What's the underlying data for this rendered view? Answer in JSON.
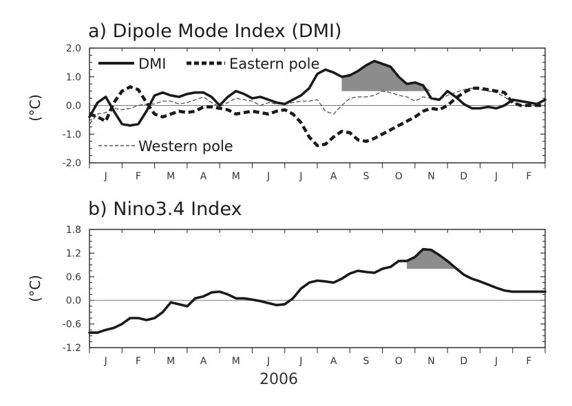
{
  "chart_data": [
    {
      "type": "line",
      "title": "a) Dipole Mode Index (DMI)",
      "xlabel": "",
      "ylabel": "(°C)",
      "ylim": [
        -2.0,
        2.0
      ],
      "yticks": [
        "2.0",
        "1.0",
        "0.0",
        "-1.0",
        "-2.0"
      ],
      "x_start": 0,
      "x_end": 14,
      "categories": [
        "J",
        "F",
        "M",
        "A",
        "M",
        "J",
        "J",
        "A",
        "S",
        "O",
        "N",
        "D",
        "J",
        "F"
      ],
      "x": [
        0,
        0.25,
        0.5,
        0.75,
        1,
        1.25,
        1.5,
        1.75,
        2,
        2.25,
        2.5,
        2.75,
        3,
        3.25,
        3.5,
        3.75,
        4,
        4.25,
        4.5,
        4.75,
        5,
        5.25,
        5.5,
        5.75,
        6,
        6.25,
        6.5,
        6.75,
        7,
        7.25,
        7.5,
        7.75,
        8,
        8.25,
        8.5,
        8.75,
        9,
        9.25,
        9.5,
        9.75,
        10,
        10.25,
        10.5,
        10.75,
        11,
        11.25,
        11.5,
        11.75,
        12,
        12.25,
        12.5,
        12.75,
        13,
        13.25,
        13.5,
        13.75,
        14
      ],
      "series": [
        {
          "name": "DMI",
          "style": "solid-thick",
          "values": [
            -0.4,
            0.1,
            0.3,
            -0.2,
            -0.65,
            -0.7,
            -0.65,
            -0.2,
            0.35,
            0.45,
            0.35,
            0.3,
            0.4,
            0.45,
            0.45,
            0.3,
            0.0,
            0.3,
            0.5,
            0.4,
            0.25,
            0.3,
            0.2,
            0.1,
            0.05,
            0.2,
            0.35,
            0.6,
            1.1,
            1.25,
            1.15,
            1.0,
            1.05,
            1.2,
            1.4,
            1.55,
            1.45,
            1.35,
            1.0,
            0.75,
            0.8,
            0.7,
            0.25,
            0.2,
            0.5,
            0.3,
            0.05,
            -0.1,
            -0.1,
            -0.05,
            -0.1,
            0.0,
            0.2,
            0.15,
            0.1,
            0.05,
            0.2
          ]
        },
        {
          "name": "Eastern pole",
          "style": "dashed-thick",
          "values": [
            -0.3,
            -0.4,
            -0.55,
            0.1,
            0.5,
            0.65,
            0.55,
            0.1,
            -0.3,
            -0.4,
            -0.3,
            -0.2,
            -0.25,
            -0.2,
            -0.05,
            -0.05,
            -0.1,
            -0.15,
            -0.3,
            -0.25,
            -0.2,
            -0.25,
            -0.3,
            -0.2,
            -0.15,
            -0.3,
            -0.6,
            -1.1,
            -1.4,
            -1.35,
            -1.1,
            -0.9,
            -0.95,
            -1.2,
            -1.25,
            -1.15,
            -1.0,
            -0.85,
            -0.7,
            -0.55,
            -0.4,
            -0.2,
            -0.1,
            -0.15,
            0.0,
            0.25,
            0.45,
            0.6,
            0.6,
            0.55,
            0.5,
            0.45,
            0.1,
            0.0,
            0.0,
            0.0,
            0.0
          ]
        },
        {
          "name": "Western pole",
          "style": "dashed-thin",
          "values": [
            -0.65,
            -0.3,
            -0.25,
            -0.1,
            -0.15,
            -0.1,
            0.0,
            0.05,
            0.05,
            0.15,
            0.15,
            0.05,
            0.1,
            0.2,
            0.3,
            0.1,
            -0.05,
            0.1,
            0.25,
            0.2,
            0.15,
            0.0,
            0.1,
            0.05,
            0.05,
            0.1,
            0.15,
            0.15,
            0.2,
            -0.2,
            -0.3,
            0.0,
            0.25,
            0.3,
            0.3,
            0.35,
            0.5,
            0.45,
            0.35,
            0.3,
            0.15,
            0.3,
            0.25,
            0.2,
            0.35,
            0.45,
            0.55,
            0.6,
            0.55,
            0.5,
            0.45,
            0.3,
            0.1,
            0.0,
            0.0,
            0.0,
            0.0
          ]
        }
      ],
      "shaded_threshold": 0.5,
      "shaded_x_range": [
        7.75,
        10.75
      ],
      "shading_color": "#8c8c8c",
      "legend": [
        "DMI",
        "Eastern pole",
        "Western pole"
      ],
      "grid": false
    },
    {
      "type": "line",
      "title": "b) Nino3.4 Index",
      "xlabel": "2006",
      "ylabel": "(°C)",
      "ylim": [
        -1.2,
        1.8
      ],
      "yticks": [
        "1.8",
        "1.2",
        "0.6",
        "0.0",
        "-0.6",
        "-1.2"
      ],
      "x_start": 0,
      "x_end": 14,
      "categories": [
        "J",
        "F",
        "M",
        "A",
        "M",
        "J",
        "J",
        "A",
        "S",
        "O",
        "N",
        "D",
        "J",
        "F"
      ],
      "x": [
        0,
        0.25,
        0.5,
        0.75,
        1,
        1.25,
        1.5,
        1.75,
        2,
        2.25,
        2.5,
        2.75,
        3,
        3.25,
        3.5,
        3.75,
        4,
        4.25,
        4.5,
        4.75,
        5,
        5.25,
        5.5,
        5.75,
        6,
        6.25,
        6.5,
        6.75,
        7,
        7.25,
        7.5,
        7.75,
        8,
        8.25,
        8.5,
        8.75,
        9,
        9.25,
        9.5,
        9.75,
        10,
        10.25,
        10.5,
        10.75,
        11,
        11.25,
        11.5,
        11.75,
        12,
        12.25,
        12.5,
        12.75,
        13,
        13.25,
        13.5,
        13.75,
        14
      ],
      "series": [
        {
          "name": "Nino3.4",
          "style": "solid-thick",
          "values": [
            -0.82,
            -0.82,
            -0.75,
            -0.7,
            -0.6,
            -0.45,
            -0.45,
            -0.5,
            -0.45,
            -0.3,
            -0.05,
            -0.1,
            -0.15,
            0.05,
            0.1,
            0.2,
            0.22,
            0.15,
            0.05,
            0.05,
            0.02,
            -0.02,
            -0.07,
            -0.12,
            -0.1,
            0.05,
            0.3,
            0.45,
            0.5,
            0.48,
            0.45,
            0.55,
            0.68,
            0.75,
            0.72,
            0.7,
            0.8,
            0.85,
            1.0,
            1.0,
            1.1,
            1.3,
            1.28,
            1.15,
            1.0,
            0.82,
            0.65,
            0.55,
            0.48,
            0.4,
            0.32,
            0.25,
            0.22,
            0.22,
            0.22,
            0.22,
            0.22
          ]
        }
      ],
      "shaded_threshold": 0.8,
      "shaded_x_range": [
        9.75,
        12.5
      ],
      "shading_color": "#8c8c8c",
      "legend": [],
      "grid": false
    }
  ]
}
